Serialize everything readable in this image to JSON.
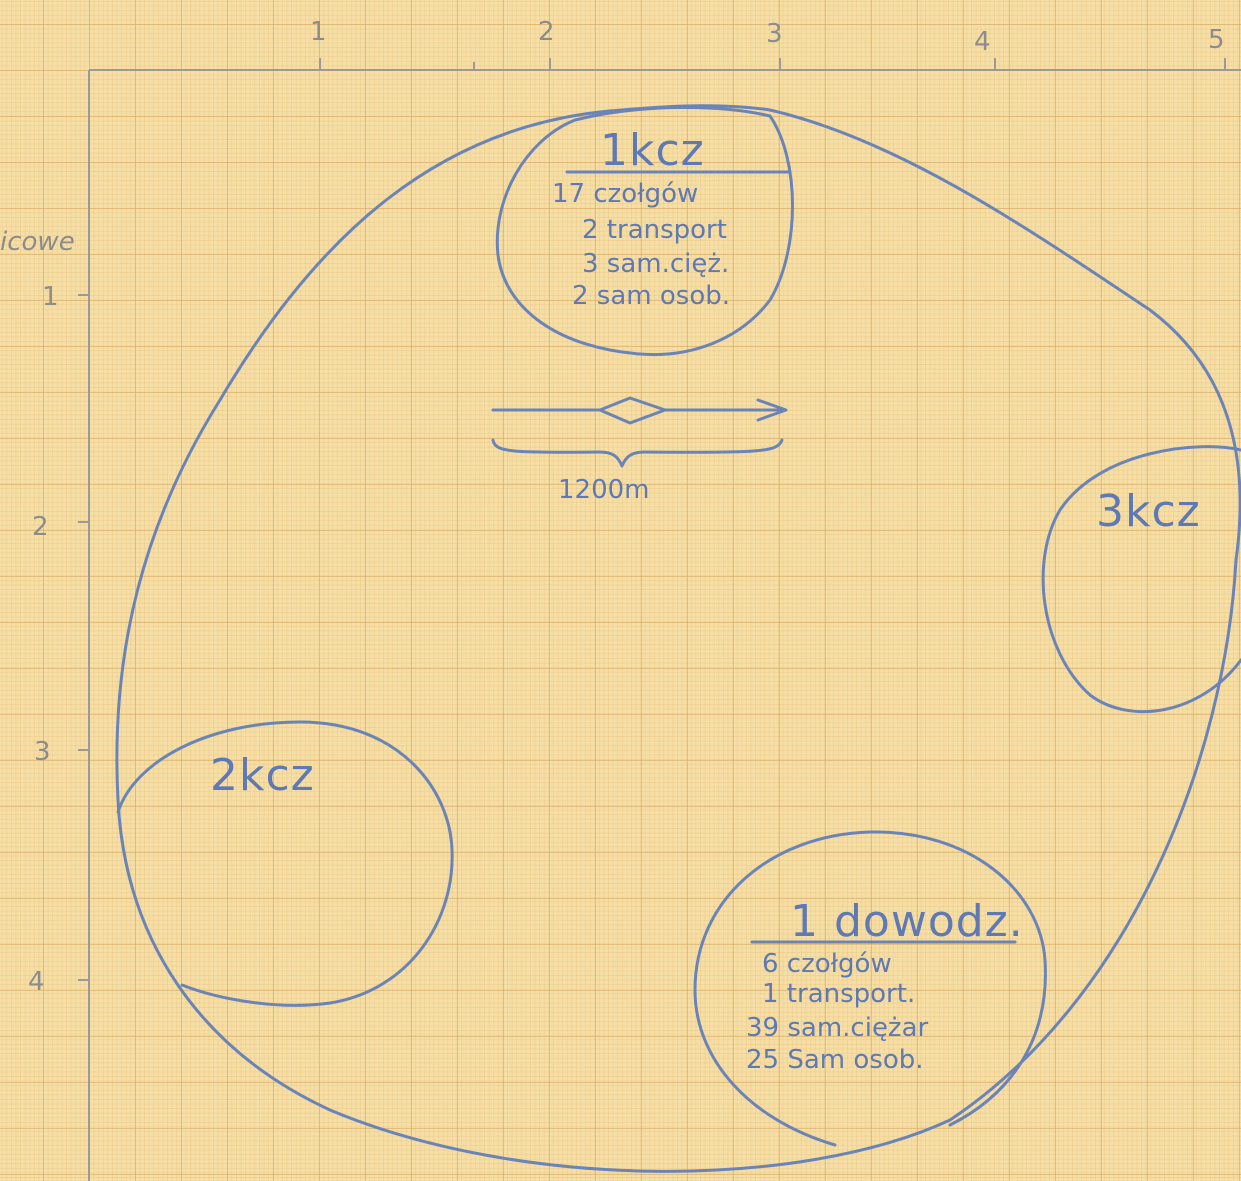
{
  "axis": {
    "x_ticks": [
      "1",
      "2",
      "3",
      "4",
      "5"
    ],
    "y_ticks": [
      "1",
      "2",
      "3",
      "4"
    ],
    "y_label_fragment": "icowe"
  },
  "group_1kcz": {
    "title": "1kcz",
    "lines": [
      "17 czołgów",
      "2 transport",
      "3 sam.cięż.",
      "2 sam osob."
    ]
  },
  "scale": {
    "distance_label": "1200m"
  },
  "group_3kcz": {
    "title": "3kcz"
  },
  "group_2kcz": {
    "title": "2kcz"
  },
  "group_dowodz": {
    "title": "1 dowodz.",
    "lines": [
      "6 czołgów",
      "1 transport.",
      "39 sam.ciężar",
      "25 Sam osob."
    ]
  },
  "colors": {
    "paper": "#f6dfa6",
    "ink": "#6b84b8",
    "grid": "#d6a55f"
  }
}
